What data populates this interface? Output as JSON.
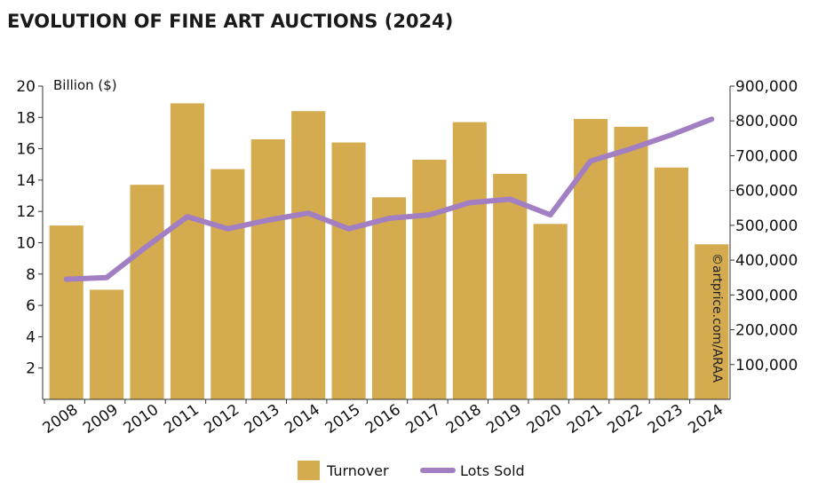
{
  "chart_data": {
    "type": "bar",
    "title": "EVOLUTION OF FINE ART AUCTIONS (2024)",
    "ylabel": "Billion ($)",
    "categories": [
      "2008",
      "2009",
      "2010",
      "2011",
      "2012",
      "2013",
      "2014",
      "2015",
      "2016",
      "2017",
      "2018",
      "2019",
      "2020",
      "2021",
      "2022",
      "2023",
      "2024"
    ],
    "series": [
      {
        "name": "Turnover",
        "type": "bar",
        "axis": "left",
        "color": "#d5ab4f",
        "values": [
          11.1,
          7.0,
          13.7,
          18.9,
          14.7,
          16.6,
          18.4,
          16.4,
          12.9,
          15.3,
          17.7,
          14.4,
          11.2,
          17.9,
          17.4,
          14.8,
          9.9
        ]
      },
      {
        "name": "Lots Sold",
        "type": "line",
        "axis": "right",
        "color": "#a27fc2",
        "values": [
          345000,
          350000,
          440000,
          525000,
          490000,
          515000,
          535000,
          490000,
          520000,
          530000,
          565000,
          575000,
          530000,
          685000,
          720000,
          760000,
          805000
        ]
      }
    ],
    "ylim": [
      0,
      20
    ],
    "y_ticks": [
      "2",
      "4",
      "6",
      "8",
      "10",
      "12",
      "14",
      "16",
      "18",
      "20"
    ],
    "y2lim": [
      0,
      900000
    ],
    "y2_ticks": [
      "100,000",
      "200,000",
      "300,000",
      "400,000",
      "500,000",
      "600,000",
      "700,000",
      "800,000",
      "900,000"
    ],
    "legend": {
      "placement": "bottom",
      "items": [
        "Turnover",
        "Lots Sold"
      ]
    },
    "grid": false,
    "watermark": "©artprice.com/ARAA"
  }
}
